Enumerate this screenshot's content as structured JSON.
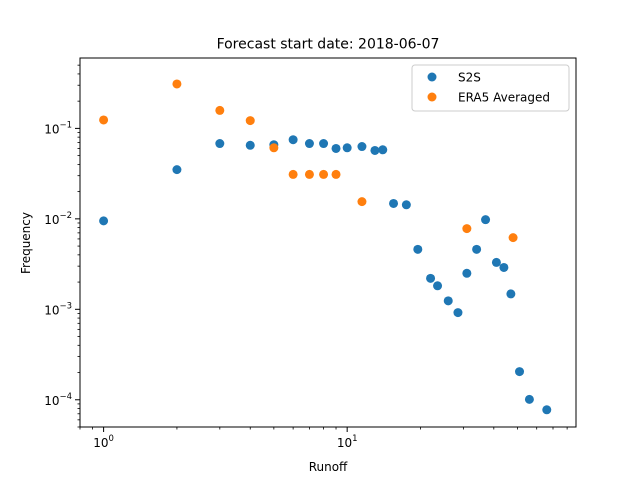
{
  "chart_data": {
    "type": "scatter",
    "title": "Forecast start date: 2018-06-07",
    "xlabel": "Runoff",
    "ylabel": "Frequency",
    "xscale": "log",
    "yscale": "log",
    "xlim": [
      0.8,
      87
    ],
    "ylim": [
      5e-05,
      0.6
    ],
    "x_ticks": [
      {
        "value": 1,
        "base": "10",
        "exp": "0"
      },
      {
        "value": 10,
        "base": "10",
        "exp": "1"
      }
    ],
    "y_ticks": [
      {
        "value": 0.0001,
        "base": "10",
        "exp": "−4"
      },
      {
        "value": 0.001,
        "base": "10",
        "exp": "−3"
      },
      {
        "value": 0.01,
        "base": "10",
        "exp": "−2"
      },
      {
        "value": 0.1,
        "base": "10",
        "exp": "−1"
      }
    ],
    "grid": false,
    "legend_position": "top-right",
    "series": [
      {
        "name": "S2S",
        "color": "#1f77b4",
        "points": [
          [
            1,
            0.0095
          ],
          [
            2,
            0.035
          ],
          [
            3,
            0.068
          ],
          [
            4,
            0.065
          ],
          [
            5,
            0.066
          ],
          [
            6,
            0.075
          ],
          [
            7,
            0.068
          ],
          [
            8,
            0.068
          ],
          [
            9,
            0.06
          ],
          [
            10,
            0.061
          ],
          [
            11.5,
            0.063
          ],
          [
            13,
            0.057
          ],
          [
            14,
            0.058
          ],
          [
            15.5,
            0.0148
          ],
          [
            17.5,
            0.0143
          ],
          [
            19.5,
            0.0046
          ],
          [
            22,
            0.0022
          ],
          [
            23.5,
            0.00182
          ],
          [
            26,
            0.00124
          ],
          [
            28.5,
            0.00092
          ],
          [
            31,
            0.0025
          ],
          [
            34,
            0.0046
          ],
          [
            37,
            0.0098
          ],
          [
            41,
            0.0033
          ],
          [
            44,
            0.0029
          ],
          [
            47,
            0.00148
          ],
          [
            51,
            0.000205
          ],
          [
            56,
            0.000101
          ],
          [
            66,
            7.75e-05
          ]
        ]
      },
      {
        "name": "ERA5 Averaged",
        "color": "#ff7f0e",
        "points": [
          [
            1,
            0.124
          ],
          [
            2,
            0.31
          ],
          [
            3,
            0.158
          ],
          [
            4,
            0.122
          ],
          [
            5,
            0.061
          ],
          [
            6,
            0.031
          ],
          [
            7,
            0.031
          ],
          [
            8,
            0.031
          ],
          [
            9,
            0.031
          ],
          [
            11.5,
            0.0155
          ],
          [
            31,
            0.0078
          ],
          [
            48,
            0.0062
          ]
        ]
      }
    ]
  }
}
